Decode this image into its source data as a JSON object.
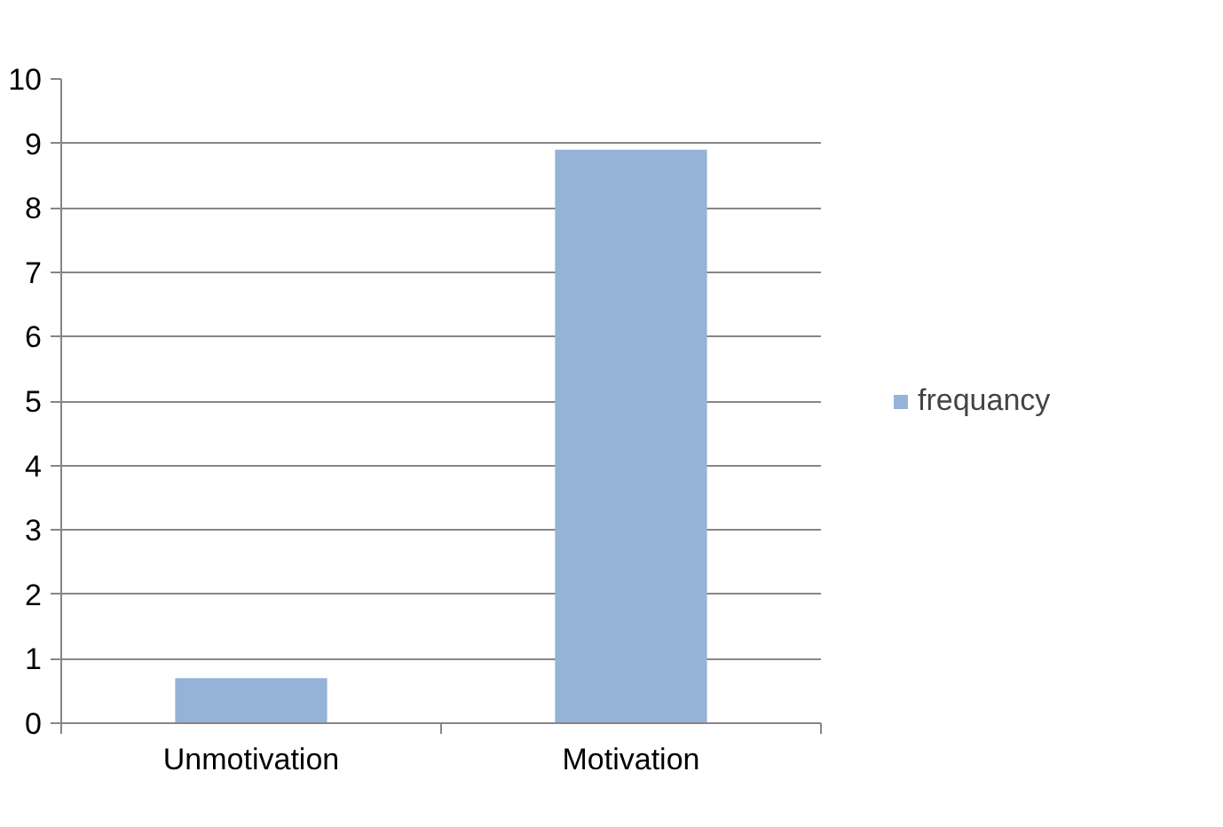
{
  "chart_data": {
    "type": "bar",
    "categories": [
      "Unmotivation",
      "Motivation"
    ],
    "series": [
      {
        "name": "frequancy",
        "color": "#95b3d7",
        "values": [
          0.7,
          8.9
        ]
      }
    ],
    "ylim": [
      0,
      10
    ],
    "yticks": [
      0,
      1,
      2,
      3,
      4,
      5,
      6,
      7,
      8,
      9,
      10
    ],
    "grid": "y",
    "legend": "right"
  }
}
